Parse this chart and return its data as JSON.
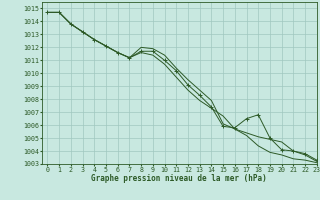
{
  "title": "Graphe pression niveau de la mer (hPa)",
  "bg_color": "#c8e8e0",
  "grid_color": "#a0c8c0",
  "line_color": "#2d5a27",
  "xlim": [
    -0.5,
    23
  ],
  "ylim": [
    1003,
    1015.5
  ],
  "xticks": [
    0,
    1,
    2,
    3,
    4,
    5,
    6,
    7,
    8,
    9,
    10,
    11,
    12,
    13,
    14,
    15,
    16,
    17,
    18,
    19,
    20,
    21,
    22,
    23
  ],
  "yticks": [
    1003,
    1004,
    1005,
    1006,
    1007,
    1008,
    1009,
    1010,
    1011,
    1012,
    1013,
    1014,
    1015
  ],
  "series": [
    {
      "x": [
        0,
        1,
        2,
        3,
        4,
        5,
        6,
        7,
        8,
        9,
        10,
        11,
        12,
        13,
        14,
        15,
        16,
        17,
        18,
        19,
        20,
        21,
        22,
        23
      ],
      "y": [
        1014.7,
        1014.7,
        1013.8,
        1013.2,
        1012.6,
        1012.1,
        1011.6,
        1011.2,
        1011.7,
        1011.7,
        1011.0,
        1010.2,
        1009.1,
        1008.3,
        1007.4,
        1005.9,
        1005.8,
        1006.5,
        1006.8,
        1005.0,
        1004.1,
        1004.0,
        1003.8,
        1003.3
      ],
      "marker": true
    },
    {
      "x": [
        0,
        1,
        2,
        3,
        4,
        5,
        6,
        7,
        8,
        9,
        10,
        11,
        12,
        13,
        14,
        15,
        16,
        17,
        18,
        19,
        20,
        21,
        22,
        23
      ],
      "y": [
        1014.7,
        1014.7,
        1013.8,
        1013.2,
        1012.6,
        1012.1,
        1011.6,
        1011.2,
        1012.0,
        1011.9,
        1011.4,
        1010.4,
        1009.5,
        1008.7,
        1007.9,
        1006.1,
        1005.7,
        1005.4,
        1005.1,
        1004.9,
        1004.7,
        1004.0,
        1003.7,
        1003.2
      ],
      "marker": false
    },
    {
      "x": [
        0,
        1,
        2,
        3,
        4,
        5,
        6,
        7,
        8,
        9,
        10,
        11,
        12,
        13,
        14,
        15,
        16,
        17,
        18,
        19,
        20,
        21,
        22,
        23
      ],
      "y": [
        1014.7,
        1014.7,
        1013.8,
        1013.2,
        1012.6,
        1012.1,
        1011.6,
        1011.2,
        1011.6,
        1011.4,
        1010.7,
        1009.7,
        1008.7,
        1007.9,
        1007.3,
        1006.7,
        1005.7,
        1005.2,
        1004.4,
        1003.9,
        1003.7,
        1003.4,
        1003.3,
        1003.1
      ],
      "marker": false
    }
  ],
  "xlabel_fontsize": 5.5,
  "tick_fontsize": 4.8
}
